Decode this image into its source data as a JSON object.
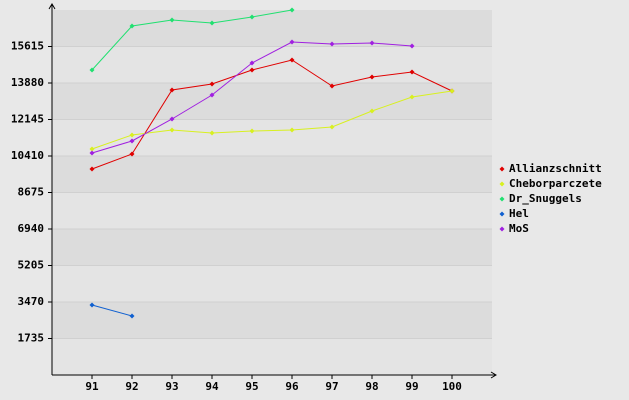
{
  "chart_data": {
    "type": "line",
    "x": [
      91,
      92,
      93,
      94,
      95,
      96,
      97,
      98,
      99,
      100
    ],
    "xlim": [
      90,
      101
    ],
    "xticks": [
      91,
      92,
      93,
      94,
      95,
      96,
      97,
      98,
      99,
      100
    ],
    "ylim": [
      0,
      17350
    ],
    "yticks": [
      1735,
      3470,
      5205,
      6940,
      8675,
      10410,
      12145,
      13880,
      15615
    ],
    "grid": true,
    "legend": "right",
    "series": [
      {
        "name": "Allianzschnitt",
        "color": "#e00000",
        "values": [
          9792,
          10505,
          13547,
          13832,
          14498,
          14973,
          13737,
          14165,
          14403,
          13500
        ]
      },
      {
        "name": "Cheborparczete",
        "color": "#d8f020",
        "values": [
          10742,
          11408,
          11646,
          11503,
          11598,
          11646,
          11788,
          12549,
          13214,
          13500
        ]
      },
      {
        "name": "Dr_Snuggels",
        "color": "#20e070",
        "values": [
          14498,
          16589,
          16875,
          16732,
          17017,
          17350,
          null,
          null,
          null,
          null
        ]
      },
      {
        "name": "Hel",
        "color": "#1060d0",
        "values": [
          3327,
          2805,
          null,
          null,
          null,
          null,
          null,
          null,
          null,
          null
        ]
      },
      {
        "name": "MoS",
        "color": "#a020e0",
        "values": [
          10552,
          11123,
          12169,
          13310,
          14831,
          15829,
          15734,
          15781,
          15639,
          null
        ]
      }
    ]
  }
}
